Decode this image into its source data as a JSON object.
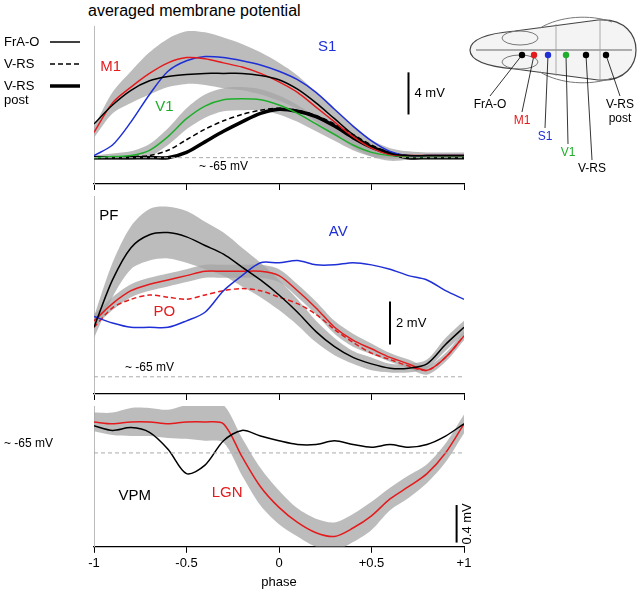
{
  "chart_data": [
    {
      "type": "line",
      "title": "averaged membrane potential",
      "x": [
        -1,
        -0.9,
        -0.8,
        -0.7,
        -0.6,
        -0.5,
        -0.4,
        -0.3,
        -0.2,
        -0.1,
        0,
        0.1,
        0.2,
        0.3,
        0.4,
        0.5,
        0.6,
        0.7,
        0.8,
        0.9,
        1
      ],
      "xlim": [
        -1,
        1
      ],
      "xticks": [
        -1,
        -0.5,
        0,
        {
          "value": 0.5,
          "label": "+0.5"
        },
        {
          "value": 1,
          "label": "+1"
        }
      ],
      "ylim": [
        -67.5,
        -52.5
      ],
      "tick_labels": false,
      "grid": false,
      "legend": "left",
      "baseline": {
        "value": -65,
        "label": "~ -65 mV"
      },
      "scale_bar": {
        "value": 4,
        "label": "4 mV"
      },
      "series": [
        {
          "name": "FrA-O",
          "color": "#000000",
          "line_style": "solid",
          "values": [
            -61.8,
            -60.0,
            -58.6,
            -57.7,
            -57.3,
            -57.1,
            -57.0,
            -57.0,
            -57.0,
            -57.2,
            -57.6,
            -58.5,
            -59.8,
            -61.3,
            -62.8,
            -63.9,
            -64.6,
            -64.8,
            -64.8,
            -64.8,
            -64.8
          ]
        },
        {
          "name": "M1",
          "color": "#e41a1c",
          "line_style": "solid",
          "values": [
            -62.6,
            -59.8,
            -58.3,
            -57.0,
            -56.0,
            -55.5,
            -55.6,
            -56.0,
            -56.4,
            -57.0,
            -57.8,
            -58.8,
            -60.2,
            -61.6,
            -63.0,
            -64.1,
            -64.7,
            -64.8,
            -64.8,
            -64.8,
            -64.8
          ],
          "error": [
            0.5,
            1.0,
            1.5,
            2.0,
            2.3,
            2.5,
            2.5,
            2.4,
            2.2,
            2.0,
            1.8,
            1.6,
            1.4,
            1.2,
            1.0,
            0.8,
            0.6,
            0.4,
            0.3,
            0.3,
            0.3
          ]
        },
        {
          "name": "S1",
          "color": "#1f2fd6",
          "line_style": "solid",
          "values": [
            -64.8,
            -63.8,
            -61.6,
            -59.0,
            -56.8,
            -55.8,
            -55.4,
            -55.5,
            -55.8,
            -56.2,
            -56.8,
            -57.6,
            -58.8,
            -60.4,
            -62.0,
            -63.4,
            -64.4,
            -64.8,
            -64.8,
            -64.8,
            -64.8
          ]
        },
        {
          "name": "V1",
          "color": "#1fae2b",
          "line_style": "solid",
          "values": [
            -65.0,
            -64.9,
            -64.8,
            -64.3,
            -63.0,
            -61.3,
            -60.1,
            -59.5,
            -59.4,
            -59.5,
            -60.0,
            -60.8,
            -61.8,
            -62.8,
            -63.8,
            -64.5,
            -64.8,
            -64.9,
            -64.9,
            -64.9,
            -64.9
          ],
          "error": [
            0.2,
            0.3,
            0.4,
            0.6,
            0.8,
            1.0,
            1.1,
            1.1,
            1.1,
            1.0,
            0.9,
            0.8,
            0.7,
            0.6,
            0.5,
            0.4,
            0.3,
            0.2,
            0.2,
            0.2,
            0.2
          ]
        },
        {
          "name": "V-RS",
          "color": "#000000",
          "line_style": "dashed",
          "values": [
            -65.0,
            -65.0,
            -64.9,
            -64.8,
            -64.3,
            -63.3,
            -62.3,
            -61.5,
            -60.9,
            -60.5,
            -60.3,
            -60.5,
            -61.0,
            -61.8,
            -62.8,
            -63.8,
            -64.5,
            -64.8,
            -64.9,
            -64.9,
            -64.9
          ]
        },
        {
          "name": "V-RS post",
          "color": "#000000",
          "line_style": "thick",
          "values": [
            -65.0,
            -65.0,
            -65.0,
            -65.0,
            -65.0,
            -64.5,
            -63.5,
            -62.5,
            -61.6,
            -60.8,
            -60.4,
            -60.6,
            -61.1,
            -62.0,
            -63.1,
            -64.0,
            -64.6,
            -65.0,
            -65.0,
            -65.0,
            -65.0
          ]
        }
      ]
    },
    {
      "type": "line",
      "x": [
        -1,
        -0.9,
        -0.8,
        -0.7,
        -0.6,
        -0.5,
        -0.4,
        -0.3,
        -0.2,
        -0.1,
        0,
        0.1,
        0.2,
        0.3,
        0.4,
        0.5,
        0.6,
        0.7,
        0.8,
        0.9,
        1
      ],
      "xlim": [
        -1,
        1
      ],
      "xticks": [
        -1,
        -0.5,
        0,
        {
          "value": 0.5,
          "label": "+0.5"
        },
        {
          "value": 1,
          "label": "+1"
        }
      ],
      "ylim": [
        -65.8,
        -56.6
      ],
      "tick_labels": false,
      "grid": false,
      "baseline": {
        "value": -65,
        "label": "~ -65 mV"
      },
      "scale_bar": {
        "value": 2,
        "label": "2 mV"
      },
      "series": [
        {
          "name": "PF",
          "color": "#000000",
          "line_style": "solid",
          "values": [
            -62.7,
            -60.5,
            -59.0,
            -58.4,
            -58.3,
            -58.5,
            -58.9,
            -59.3,
            -59.9,
            -60.5,
            -61.2,
            -62.0,
            -62.9,
            -63.6,
            -64.1,
            -64.4,
            -64.6,
            -64.6,
            -64.4,
            -63.5,
            -62.7
          ],
          "error": [
            0.5,
            0.8,
            1.0,
            1.2,
            1.2,
            1.2,
            1.1,
            1.0,
            0.9,
            0.8,
            0.7,
            0.6,
            0.5,
            0.4,
            0.3,
            0.3,
            0.2,
            0.2,
            0.2,
            0.3,
            0.3
          ]
        },
        {
          "name": "AV",
          "color": "#1f2fd6",
          "line_style": "solid",
          "values": [
            -62.2,
            -62.5,
            -62.7,
            -62.7,
            -62.7,
            -62.4,
            -62.0,
            -61.0,
            -60.3,
            -59.7,
            -59.7,
            -59.6,
            -59.8,
            -59.8,
            -59.7,
            -59.8,
            -60.0,
            -60.3,
            -60.5,
            -61.0,
            -61.4
          ]
        },
        {
          "name": "PO",
          "color": "#e41a1c",
          "line_style": "solid",
          "values": [
            -62.4,
            -61.6,
            -61.0,
            -60.7,
            -60.5,
            -60.3,
            -60.1,
            -60.1,
            -60.1,
            -60.1,
            -60.3,
            -61.0,
            -61.8,
            -62.7,
            -63.3,
            -63.7,
            -64.1,
            -64.4,
            -64.7,
            -64.1,
            -63.1
          ],
          "error": [
            0.3,
            0.3,
            0.3,
            0.3,
            0.3,
            0.3,
            0.3,
            0.3,
            0.3,
            0.3,
            0.3,
            0.3,
            0.3,
            0.3,
            0.3,
            0.25,
            0.2,
            0.2,
            0.2,
            0.2,
            0.2
          ]
        },
        {
          "color": "#e41a1c",
          "line_style": "dashed",
          "values": [
            -62.7,
            -61.8,
            -61.4,
            -61.2,
            -61.3,
            -61.4,
            -61.2,
            -61.0,
            -60.9,
            -61.0,
            -61.3,
            -61.6,
            -62.1,
            -62.8,
            -63.4,
            -63.9,
            -64.2,
            -64.5,
            -64.7,
            -64.1,
            -63.1
          ]
        }
      ]
    },
    {
      "type": "line",
      "xlabel": "phase",
      "x": [
        -1,
        -0.9,
        -0.8,
        -0.7,
        -0.6,
        -0.5,
        -0.4,
        -0.3,
        -0.2,
        -0.1,
        0,
        0.1,
        0.2,
        0.3,
        0.4,
        0.5,
        0.6,
        0.7,
        0.8,
        0.9,
        1
      ],
      "xlim": [
        -1,
        1
      ],
      "xticks": [
        -1,
        -0.5,
        0,
        {
          "value": 0.5,
          "label": "+0.5"
        },
        {
          "value": 1,
          "label": "+1"
        }
      ],
      "ylim": [
        -66.0,
        -64.5
      ],
      "tick_labels": "x",
      "grid": false,
      "baseline": {
        "value": -65,
        "label": "~ -65 mV"
      },
      "scale_bar": {
        "value": 0.4,
        "label": "0.4 mV"
      },
      "series": [
        {
          "name": "VPM",
          "color": "#000000",
          "line_style": "solid",
          "values": [
            -64.71,
            -64.76,
            -64.73,
            -64.78,
            -64.96,
            -65.22,
            -65.13,
            -64.87,
            -64.76,
            -64.82,
            -64.87,
            -64.91,
            -64.91,
            -64.87,
            -64.91,
            -64.94,
            -64.91,
            -64.94,
            -64.91,
            -64.82,
            -64.69
          ]
        },
        {
          "name": "LGN",
          "color": "#e41a1c",
          "line_style": "solid",
          "values": [
            -64.67,
            -64.69,
            -64.67,
            -64.67,
            -64.69,
            -64.67,
            -64.67,
            -64.69,
            -65.04,
            -65.36,
            -65.58,
            -65.74,
            -65.85,
            -65.89,
            -65.8,
            -65.67,
            -65.49,
            -65.36,
            -65.22,
            -65.0,
            -64.69
          ],
          "error": [
            0.1,
            0.12,
            0.15,
            0.15,
            0.15,
            0.18,
            0.2,
            0.2,
            0.2,
            0.2,
            0.18,
            0.15,
            0.15,
            0.15,
            0.15,
            0.15,
            0.12,
            0.12,
            0.1,
            0.1,
            0.1
          ]
        }
      ]
    }
  ],
  "diagram": {
    "sites": [
      {
        "label": "FrA-O",
        "color": "#000000"
      },
      {
        "label": "M1",
        "color": "#e41a1c"
      },
      {
        "label": "S1",
        "color": "#1f2fd6"
      },
      {
        "label": "V1",
        "color": "#1fae2b"
      },
      {
        "label": "V-RS",
        "color": "#000000"
      },
      {
        "label": "V-RS post",
        "color": "#000000"
      }
    ]
  }
}
